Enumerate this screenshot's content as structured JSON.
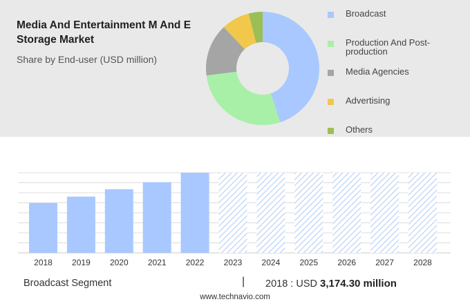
{
  "header": {
    "title": "Media And Entertainment M And E Storage Market",
    "subtitle": "Share by End-user (USD million)"
  },
  "chart_data": [
    {
      "type": "pie",
      "donut": true,
      "categories": [
        "Broadcast",
        "Production And Post-production",
        "Media Agencies",
        "Advertising",
        "Others"
      ],
      "values": [
        45,
        28,
        15,
        8,
        4
      ],
      "colors": [
        "#a8c8ff",
        "#a8f0a8",
        "#a5a5a5",
        "#f2c84b",
        "#9cbf55"
      ],
      "legend_position": "right"
    },
    {
      "type": "bar",
      "categories": [
        "2018",
        "2019",
        "2020",
        "2021",
        "2022",
        "2023",
        "2024",
        "2025",
        "2026",
        "2027",
        "2028"
      ],
      "values": [
        3174.3,
        3580,
        4050,
        4500,
        5100,
        5100,
        5100,
        5100,
        5100,
        5100,
        5100
      ],
      "forecast_from": "2023",
      "color": "#a8c8ff",
      "grid": true
    }
  ],
  "footer": {
    "segment_label": "Broadcast Segment",
    "separator": "|",
    "value_prefix": "2018 : USD",
    "value_bold": "3,174.30 million",
    "source": "www.technavio.com"
  }
}
